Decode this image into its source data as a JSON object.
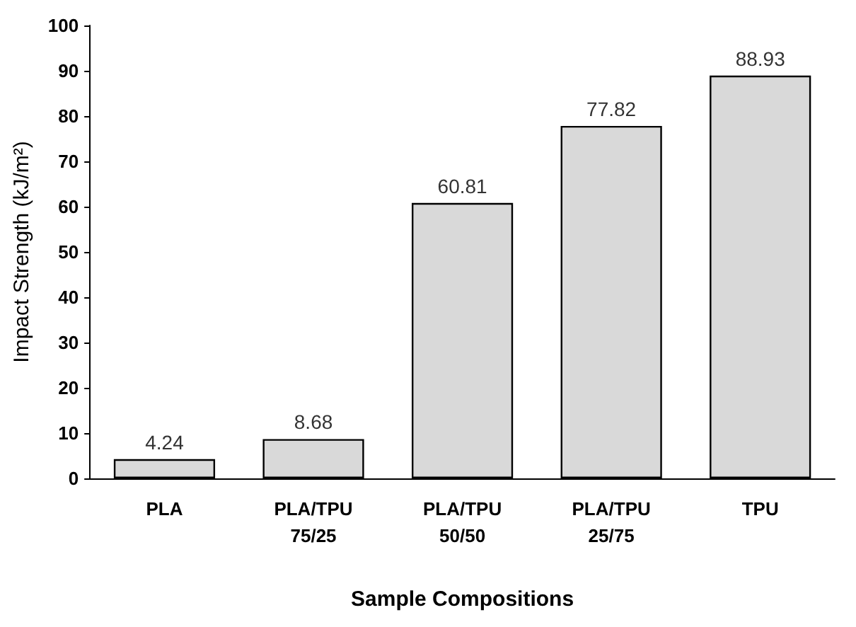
{
  "chart_data": {
    "type": "bar",
    "xlabel": "Sample Compositions",
    "ylabel": "Impact Strength (kJ/m²)",
    "categories": [
      "PLA",
      "PLA/TPU 75/25",
      "PLA/TPU 50/50",
      "PLA/TPU 25/75",
      "TPU"
    ],
    "values": [
      4.24,
      8.68,
      60.81,
      77.82,
      88.93
    ],
    "color": "#d9d9d9",
    "ylim": [
      0,
      100
    ],
    "yticks": [
      0,
      10,
      20,
      30,
      40,
      50,
      60,
      70,
      80,
      90,
      100
    ],
    "grid": false,
    "data_labels": true
  }
}
